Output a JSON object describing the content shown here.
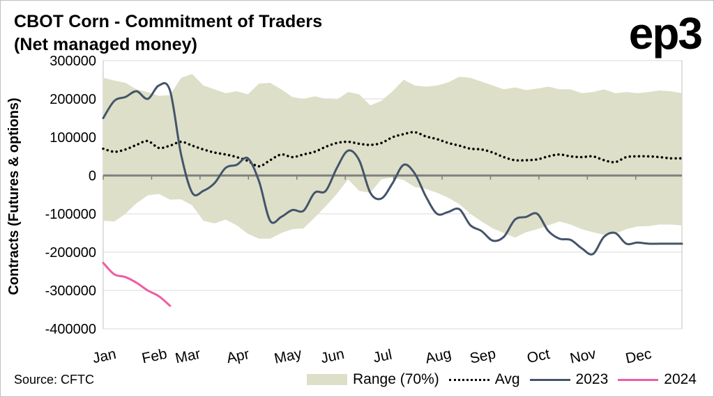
{
  "chart_data": {
    "type": "line",
    "title": "CBOT Corn - Commitment of Traders",
    "subtitle": "(Net managed money)",
    "ylabel": "Contracts (Futures & options)",
    "xlabel": "",
    "ylim": [
      -400000,
      300000
    ],
    "yticks": [
      300000,
      200000,
      100000,
      0,
      -100000,
      -200000,
      -300000,
      -400000
    ],
    "ytick_labels": [
      "300000",
      "200000",
      "100000",
      "0",
      "-100000",
      "-200000",
      "-300000",
      "-400000"
    ],
    "xlim": [
      0,
      52
    ],
    "categories": [
      "Jan",
      "Feb",
      "Mar",
      "Apr",
      "May",
      "Jun",
      "Jul",
      "Aug",
      "Sep",
      "Oct",
      "Nov",
      "Dec"
    ],
    "category_week": [
      0,
      4.5,
      7.5,
      12,
      16.5,
      20.5,
      25,
      30,
      34,
      39,
      43,
      48
    ],
    "x_unit": "week of year",
    "grid": "horizontal",
    "legend_position": "bottom",
    "range_band": {
      "name": "Range (70%)",
      "x": [
        0,
        1,
        2,
        3,
        4,
        5,
        6,
        7,
        8,
        9,
        10,
        11,
        12,
        13,
        14,
        15,
        16,
        17,
        18,
        19,
        20,
        21,
        22,
        23,
        24,
        25,
        26,
        27,
        28,
        29,
        30,
        31,
        32,
        33,
        34,
        35,
        36,
        37,
        38,
        39,
        40,
        41,
        42,
        43,
        44,
        45,
        46,
        47,
        48,
        49,
        50,
        51,
        52
      ],
      "upper": [
        255000,
        248000,
        242000,
        225000,
        218000,
        208000,
        210000,
        255000,
        265000,
        235000,
        225000,
        215000,
        220000,
        212000,
        240000,
        242000,
        225000,
        205000,
        200000,
        207000,
        200000,
        198000,
        218000,
        212000,
        183000,
        195000,
        220000,
        250000,
        235000,
        232000,
        235000,
        243000,
        258000,
        255000,
        245000,
        235000,
        225000,
        230000,
        223000,
        227000,
        232000,
        225000,
        225000,
        215000,
        218000,
        225000,
        215000,
        218000,
        215000,
        218000,
        222000,
        220000,
        215000
      ],
      "lower": [
        -118000,
        -120000,
        -100000,
        -72000,
        -52000,
        -48000,
        -63000,
        -62000,
        -78000,
        -118000,
        -125000,
        -115000,
        -130000,
        -152000,
        -165000,
        -165000,
        -150000,
        -140000,
        -138000,
        -110000,
        -80000,
        -48000,
        -10000,
        -40000,
        -45000,
        -10000,
        -5000,
        -12000,
        -30000,
        -35000,
        -45000,
        -58000,
        -75000,
        -100000,
        -120000,
        -138000,
        -150000,
        -162000,
        -148000,
        -140000,
        -130000,
        -120000,
        -128000,
        -140000,
        -148000,
        -155000,
        -152000,
        -140000,
        -133000,
        -132000,
        -128000,
        -128000,
        -130000
      ]
    },
    "series": [
      {
        "name": "Avg",
        "color": "#000000",
        "style": "dotted",
        "x": [
          0,
          1,
          2,
          3,
          4,
          5,
          6,
          7,
          8,
          9,
          10,
          11,
          12,
          13,
          14,
          15,
          16,
          17,
          18,
          19,
          20,
          21,
          22,
          23,
          24,
          25,
          26,
          27,
          28,
          29,
          30,
          31,
          32,
          33,
          34,
          35,
          36,
          37,
          38,
          39,
          40,
          41,
          42,
          43,
          44,
          45,
          46,
          47,
          48,
          49,
          50,
          51,
          52
        ],
        "y": [
          70000,
          62000,
          68000,
          80000,
          90000,
          72000,
          78000,
          88000,
          78000,
          68000,
          60000,
          55000,
          48000,
          38000,
          24000,
          40000,
          55000,
          48000,
          55000,
          62000,
          75000,
          85000,
          88000,
          83000,
          80000,
          85000,
          100000,
          108000,
          113000,
          102000,
          95000,
          85000,
          78000,
          70000,
          68000,
          60000,
          48000,
          40000,
          40000,
          42000,
          50000,
          55000,
          50000,
          48000,
          50000,
          40000,
          35000,
          48000,
          50000,
          50000,
          48000,
          45000,
          45000
        ]
      },
      {
        "name": "2023",
        "color": "#44546a",
        "style": "solid",
        "x": [
          0,
          1,
          2,
          3,
          4,
          5,
          6,
          7,
          8,
          9,
          10,
          11,
          12,
          13,
          14,
          15,
          16,
          17,
          18,
          19,
          20,
          21,
          22,
          23,
          24,
          25,
          26,
          27,
          28,
          29,
          30,
          31,
          32,
          33,
          34,
          35,
          36,
          37,
          38,
          39,
          40,
          41,
          42,
          43,
          44,
          45,
          46,
          47,
          48,
          49,
          50,
          51,
          52
        ],
        "y": [
          150000,
          195000,
          205000,
          220000,
          200000,
          235000,
          222000,
          55000,
          -45000,
          -40000,
          -20000,
          20000,
          28000,
          45000,
          -15000,
          -118000,
          -108000,
          -90000,
          -92000,
          -45000,
          -40000,
          20000,
          65000,
          40000,
          -45000,
          -60000,
          -20000,
          28000,
          5000,
          -55000,
          -100000,
          -95000,
          -88000,
          -130000,
          -145000,
          -170000,
          -160000,
          -115000,
          -108000,
          -100000,
          -145000,
          -165000,
          -168000,
          -190000,
          -205000,
          -160000,
          -150000,
          -178000,
          -175000,
          -178000,
          -178000,
          -178000,
          -178000
        ]
      },
      {
        "name": "2024",
        "color": "#ee5ca3",
        "style": "solid",
        "x": [
          0,
          1,
          2,
          3,
          4,
          5,
          6
        ],
        "y": [
          -228000,
          -258000,
          -265000,
          -280000,
          -300000,
          -315000,
          -340000
        ]
      }
    ]
  },
  "branding": {
    "logo_text": "ep3"
  },
  "footer": {
    "source": "Source: CFTC"
  }
}
